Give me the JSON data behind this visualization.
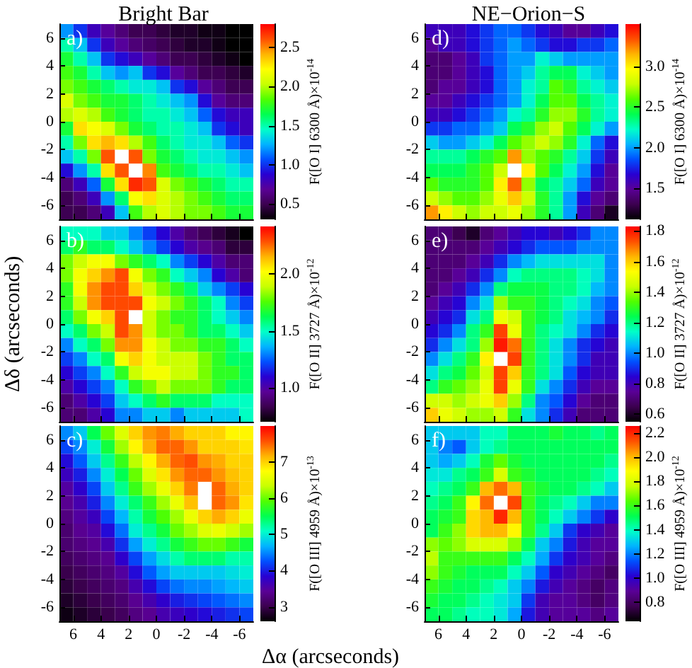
{
  "chart_data": [
    {
      "type": "heatmap",
      "title": "Bright Bar",
      "clabel": "F([O I] 6300 Å)×10$^{-14}$",
      "annotations": [
        "a)"
      ],
      "xlim": [
        7,
        -7
      ],
      "ylim": [
        -7,
        7
      ],
      "xticks": [
        6,
        4,
        2,
        0,
        -2,
        -4,
        -6
      ],
      "yticks": [
        -6,
        -4,
        -2,
        0,
        2,
        4,
        6
      ],
      "tick_labels": "y",
      "clim": [
        0.3,
        2.8
      ],
      "cticks": [
        0.5,
        {
          "value": 1,
          "label": "1.0"
        },
        1.5,
        {
          "value": 2,
          "label": "2.0"
        },
        2.5
      ],
      "cells": [
        [
          1.2,
          1.0,
          0.8,
          0.7,
          0.6,
          0.5,
          0.5,
          0.45,
          0.4,
          0.4,
          0.35,
          0.35,
          0.3,
          0.3
        ],
        [
          1.5,
          1.3,
          1.0,
          0.8,
          0.7,
          0.6,
          0.55,
          0.5,
          0.45,
          0.4,
          0.4,
          0.35,
          0.3,
          0.3
        ],
        [
          1.7,
          1.5,
          1.3,
          1.0,
          0.9,
          0.8,
          0.7,
          0.6,
          0.5,
          0.5,
          0.45,
          0.4,
          0.35,
          0.3
        ],
        [
          1.8,
          1.7,
          1.5,
          1.3,
          1.2,
          1.3,
          1.0,
          0.9,
          0.7,
          0.6,
          0.5,
          0.5,
          0.45,
          0.4
        ],
        [
          1.9,
          1.8,
          1.7,
          1.6,
          1.5,
          1.4,
          1.4,
          1.3,
          1.0,
          0.9,
          0.7,
          0.6,
          0.5,
          0.5
        ],
        [
          2.1,
          1.9,
          1.8,
          1.7,
          1.7,
          1.6,
          1.5,
          1.4,
          1.3,
          1.2,
          0.9,
          0.7,
          0.6,
          0.6
        ],
        [
          2.0,
          2.1,
          2.0,
          1.8,
          1.7,
          1.6,
          1.5,
          1.5,
          1.4,
          1.3,
          1.1,
          0.9,
          0.8,
          0.8
        ],
        [
          1.7,
          2.3,
          2.2,
          2.1,
          1.9,
          1.7,
          1.6,
          1.5,
          1.5,
          1.4,
          1.3,
          1.0,
          0.9,
          0.8
        ],
        [
          1.5,
          1.9,
          2.3,
          2.4,
          2.3,
          2.0,
          1.8,
          1.6,
          1.5,
          1.4,
          1.4,
          1.3,
          1.1,
          1.0
        ],
        [
          1.3,
          1.5,
          1.9,
          2.6,
          null,
          2.6,
          1.9,
          1.7,
          1.6,
          1.5,
          1.4,
          1.4,
          1.3,
          1.2
        ],
        [
          0.9,
          1.2,
          1.5,
          2.3,
          2.6,
          null,
          2.5,
          1.8,
          1.7,
          1.6,
          1.5,
          1.5,
          1.4,
          1.3
        ],
        [
          0.6,
          0.8,
          1.1,
          1.7,
          2.3,
          2.7,
          2.6,
          2.1,
          1.9,
          1.8,
          1.7,
          1.6,
          1.5,
          1.5
        ],
        [
          0.5,
          0.6,
          0.8,
          1.2,
          1.6,
          2.2,
          2.3,
          2.1,
          2.0,
          1.9,
          1.8,
          1.7,
          1.6,
          1.6
        ],
        [
          0.5,
          0.5,
          0.6,
          0.8,
          1.3,
          1.8,
          2.0,
          2.1,
          2.0,
          1.9,
          1.9,
          1.8,
          1.7,
          1.7
        ]
      ]
    },
    {
      "type": "heatmap",
      "title": "NE−Orion−S",
      "clabel": "F([O I] 6300 Å)×10$^{-14}$",
      "annotations": [
        "d)"
      ],
      "xlim": [
        7,
        -7
      ],
      "ylim": [
        -7,
        7
      ],
      "xticks": [
        6,
        4,
        2,
        0,
        -2,
        -4,
        -6
      ],
      "yticks": [
        -6,
        -4,
        -2,
        0,
        2,
        4,
        6
      ],
      "tick_labels": "y",
      "clim": [
        1.12,
        3.52
      ],
      "cticks": [
        1.5,
        {
          "value": 2,
          "label": "2.0"
        },
        2.5,
        {
          "value": 3,
          "label": "3.0"
        }
      ],
      "cells": [
        [
          1.6,
          1.6,
          1.6,
          1.7,
          1.8,
          1.9,
          1.9,
          1.8,
          1.7,
          1.6,
          1.5,
          1.5,
          1.6,
          1.7
        ],
        [
          1.5,
          1.6,
          1.6,
          1.7,
          1.8,
          1.9,
          2.0,
          1.9,
          1.8,
          1.7,
          1.7,
          1.8,
          1.8,
          1.9
        ],
        [
          1.4,
          1.4,
          1.5,
          1.6,
          1.8,
          1.9,
          2.0,
          2.0,
          2.2,
          2.1,
          2.0,
          2.0,
          2.0,
          2.0
        ],
        [
          1.4,
          1.4,
          1.5,
          1.6,
          1.7,
          1.9,
          2.0,
          2.1,
          2.3,
          2.4,
          2.4,
          2.2,
          2.1,
          2.0
        ],
        [
          1.4,
          1.5,
          1.5,
          1.6,
          1.7,
          1.9,
          2.0,
          2.2,
          2.3,
          2.6,
          2.5,
          2.3,
          2.2,
          2.1
        ],
        [
          1.5,
          1.5,
          1.6,
          1.7,
          1.8,
          1.9,
          2.0,
          2.2,
          2.4,
          2.6,
          2.6,
          2.4,
          2.3,
          2.2
        ],
        [
          1.6,
          1.6,
          1.7,
          1.8,
          1.9,
          2.0,
          2.2,
          2.3,
          2.5,
          2.7,
          2.7,
          2.5,
          2.3,
          2.2
        ],
        [
          1.8,
          1.8,
          1.9,
          1.9,
          2.0,
          2.1,
          2.4,
          2.5,
          2.7,
          2.8,
          2.6,
          2.4,
          2.2,
          2.0
        ],
        [
          2.1,
          2.0,
          2.0,
          2.1,
          2.2,
          2.4,
          2.6,
          2.7,
          2.8,
          2.7,
          2.5,
          2.2,
          1.9,
          1.7
        ],
        [
          2.3,
          2.3,
          2.3,
          2.4,
          2.5,
          2.6,
          3.2,
          2.7,
          2.6,
          2.5,
          2.3,
          2.1,
          1.8,
          1.6
        ],
        [
          2.4,
          2.4,
          2.4,
          2.5,
          2.6,
          2.8,
          null,
          3.0,
          2.6,
          2.4,
          2.2,
          2.0,
          1.7,
          1.5
        ],
        [
          2.6,
          2.5,
          2.5,
          2.5,
          2.6,
          3.0,
          3.3,
          2.7,
          2.4,
          2.3,
          2.1,
          1.9,
          1.6,
          1.5
        ],
        [
          2.8,
          2.7,
          2.6,
          2.6,
          2.7,
          2.9,
          3.1,
          2.8,
          2.5,
          2.3,
          2.0,
          1.7,
          1.5,
          1.4
        ],
        [
          3.2,
          3.0,
          2.8,
          2.7,
          2.8,
          2.8,
          2.9,
          2.7,
          2.5,
          2.3,
          2.0,
          1.6,
          1.4,
          1.2
        ]
      ]
    },
    {
      "type": "heatmap",
      "ylabel": "Δδ (arcseconds)",
      "clabel": "F([O II] 3727 Å)×10$^{-12}$",
      "annotations": [
        "b)"
      ],
      "xlim": [
        7,
        -7
      ],
      "ylim": [
        -7,
        7
      ],
      "xticks": [
        6,
        4,
        2,
        0,
        -2,
        -4,
        -6
      ],
      "yticks": [
        -6,
        -4,
        -2,
        0,
        2,
        4,
        6
      ],
      "tick_labels": "y",
      "clim": [
        0.7,
        2.42
      ],
      "cticks": [
        {
          "value": 1,
          "label": "1.0"
        },
        1.5,
        {
          "value": 2,
          "label": "2.0"
        }
      ],
      "cells": [
        [
          1.5,
          1.5,
          1.5,
          1.4,
          1.4,
          1.3,
          1.2,
          1.1,
          1.0,
          0.9,
          0.85,
          0.8,
          0.75,
          0.7
        ],
        [
          1.6,
          1.7,
          1.6,
          1.6,
          1.5,
          1.4,
          1.3,
          1.2,
          1.1,
          1.0,
          0.95,
          0.9,
          0.8,
          0.8
        ],
        [
          1.8,
          1.9,
          2.0,
          2.0,
          1.8,
          1.7,
          1.6,
          1.5,
          1.3,
          1.2,
          1.1,
          1.0,
          0.9,
          0.9
        ],
        [
          1.8,
          2.0,
          2.1,
          2.2,
          2.3,
          2.0,
          1.8,
          1.7,
          1.5,
          1.4,
          1.3,
          1.1,
          1.0,
          0.9
        ],
        [
          1.7,
          2.0,
          2.2,
          2.3,
          2.3,
          2.1,
          1.9,
          1.8,
          1.7,
          1.6,
          1.4,
          1.3,
          1.2,
          1.1
        ],
        [
          1.7,
          1.9,
          2.2,
          2.3,
          2.3,
          2.3,
          2.0,
          1.9,
          1.8,
          1.7,
          1.6,
          1.5,
          1.3,
          1.2
        ],
        [
          1.6,
          1.8,
          2.0,
          2.1,
          2.3,
          null,
          1.9,
          1.8,
          1.7,
          1.7,
          1.6,
          1.5,
          1.4,
          1.3
        ],
        [
          1.5,
          1.6,
          1.8,
          1.9,
          2.3,
          2.2,
          1.9,
          1.8,
          1.8,
          1.7,
          1.6,
          1.6,
          1.5,
          1.4
        ],
        [
          1.3,
          1.5,
          1.6,
          1.8,
          2.2,
          2.2,
          2.0,
          1.9,
          1.8,
          1.8,
          1.7,
          1.7,
          1.6,
          1.5
        ],
        [
          1.2,
          1.3,
          1.5,
          1.6,
          2.0,
          2.1,
          2.0,
          1.9,
          1.9,
          1.9,
          1.8,
          1.7,
          1.6,
          1.6
        ],
        [
          1.1,
          1.2,
          1.3,
          1.5,
          1.7,
          1.9,
          2.0,
          2.0,
          1.9,
          1.9,
          1.8,
          1.7,
          1.7,
          1.6
        ],
        [
          1.0,
          1.1,
          1.2,
          1.3,
          1.5,
          1.7,
          1.8,
          1.9,
          1.8,
          1.8,
          1.8,
          1.7,
          1.6,
          1.6
        ],
        [
          0.9,
          1.0,
          1.1,
          1.2,
          1.4,
          1.5,
          1.6,
          1.7,
          1.6,
          1.6,
          1.6,
          1.5,
          1.5,
          1.5
        ],
        [
          0.9,
          0.9,
          1.0,
          1.1,
          1.3,
          1.3,
          1.4,
          1.4,
          1.3,
          1.4,
          1.4,
          1.4,
          1.4,
          1.5
        ]
      ]
    },
    {
      "type": "heatmap",
      "clabel": "F([O II] 3727 Å)×10$^{-12}$",
      "annotations": [
        "e)"
      ],
      "xlim": [
        7,
        -7
      ],
      "ylim": [
        -7,
        7
      ],
      "xticks": [
        6,
        4,
        2,
        0,
        -2,
        -4,
        -6
      ],
      "yticks": [
        -6,
        -4,
        -2,
        0,
        2,
        4,
        6
      ],
      "tick_labels": "y",
      "clim": [
        0.55,
        1.83
      ],
      "cticks": [
        0.6,
        0.8,
        {
          "value": 1,
          "label": "1.0"
        },
        1.2,
        1.4,
        1.6,
        1.8
      ],
      "cells": [
        [
          0.7,
          0.7,
          0.65,
          0.6,
          0.7,
          0.75,
          0.8,
          0.85,
          0.85,
          0.8,
          0.85,
          0.9,
          1.0,
          1.0
        ],
        [
          0.7,
          0.7,
          0.7,
          0.7,
          0.75,
          0.8,
          0.85,
          0.9,
          0.95,
          0.95,
          0.95,
          1.0,
          1.0,
          1.0
        ],
        [
          0.7,
          0.7,
          0.7,
          0.75,
          0.8,
          0.9,
          1.0,
          1.05,
          1.1,
          1.1,
          1.1,
          1.1,
          1.1,
          1.0
        ],
        [
          0.7,
          0.7,
          0.75,
          0.8,
          0.9,
          1.0,
          1.15,
          1.2,
          1.2,
          1.2,
          1.2,
          1.15,
          1.1,
          1.0
        ],
        [
          0.7,
          0.75,
          0.8,
          0.9,
          1.0,
          1.2,
          1.25,
          1.25,
          1.25,
          1.2,
          1.2,
          1.15,
          1.05,
          1.0
        ],
        [
          0.75,
          0.8,
          0.85,
          1.0,
          1.1,
          1.4,
          1.3,
          1.3,
          1.25,
          1.2,
          1.15,
          1.1,
          1.0,
          0.95
        ],
        [
          0.8,
          0.85,
          0.9,
          1.1,
          1.2,
          1.5,
          1.45,
          1.3,
          1.25,
          1.2,
          1.1,
          1.05,
          1.0,
          0.9
        ],
        [
          0.85,
          0.9,
          1.0,
          1.2,
          1.3,
          1.75,
          1.5,
          1.3,
          1.2,
          1.15,
          1.1,
          1.0,
          0.9,
          0.85
        ],
        [
          0.9,
          1.0,
          1.1,
          1.2,
          1.4,
          1.8,
          1.7,
          1.3,
          1.2,
          1.1,
          1.0,
          0.9,
          0.85,
          0.8
        ],
        [
          1.0,
          1.1,
          1.2,
          1.3,
          1.55,
          null,
          1.75,
          1.3,
          1.2,
          1.1,
          1.0,
          0.9,
          0.8,
          0.8
        ],
        [
          1.1,
          1.2,
          1.25,
          1.35,
          1.45,
          1.75,
          1.6,
          1.3,
          1.2,
          1.1,
          0.95,
          0.85,
          0.8,
          0.8
        ],
        [
          1.2,
          1.3,
          1.35,
          1.4,
          1.5,
          1.75,
          1.5,
          1.3,
          1.1,
          1.0,
          0.9,
          0.8,
          0.75,
          0.75
        ],
        [
          1.45,
          1.45,
          1.4,
          1.45,
          1.5,
          1.6,
          1.4,
          1.2,
          1.0,
          0.95,
          0.85,
          0.75,
          0.7,
          0.7
        ],
        [
          1.6,
          1.5,
          1.45,
          1.4,
          1.4,
          1.45,
          1.3,
          1.1,
          1.0,
          0.9,
          0.8,
          0.7,
          0.7,
          0.7
        ]
      ]
    },
    {
      "type": "heatmap",
      "xlabel": "Δα (arcseconds)",
      "clabel": "F([O III] 4959 Å)×10$^{-13}$",
      "annotations": [
        "c)"
      ],
      "xlim": [
        7,
        -7
      ],
      "ylim": [
        -7,
        7
      ],
      "xticks": [
        6,
        4,
        2,
        0,
        -2,
        -4,
        -6
      ],
      "yticks": [
        -6,
        -4,
        -2,
        0,
        2,
        4,
        6
      ],
      "clim": [
        2.6,
        8
      ],
      "cticks": [
        3,
        4,
        5,
        6,
        7
      ],
      "cells": [
        [
          4.5,
          4.8,
          5.5,
          6.0,
          6.5,
          7.0,
          7.3,
          7.4,
          7.2,
          7.0,
          7.0,
          7.0,
          6.8,
          6.8
        ],
        [
          4.2,
          4.5,
          5.0,
          5.6,
          6.2,
          6.8,
          7.2,
          7.5,
          7.5,
          7.3,
          7.0,
          7.0,
          7.0,
          6.9
        ],
        [
          3.9,
          4.3,
          4.8,
          5.3,
          5.8,
          6.3,
          6.8,
          7.2,
          7.5,
          7.6,
          7.3,
          7.2,
          7.0,
          7.0
        ],
        [
          3.7,
          4.0,
          4.5,
          5.0,
          5.5,
          6.0,
          6.5,
          6.9,
          7.3,
          7.5,
          7.5,
          7.3,
          7.1,
          7.0
        ],
        [
          3.5,
          3.8,
          4.2,
          4.8,
          5.3,
          5.8,
          6.2,
          6.6,
          7.0,
          7.4,
          null,
          7.5,
          7.2,
          7.0
        ],
        [
          3.4,
          3.6,
          4.0,
          4.5,
          5.0,
          5.4,
          5.8,
          6.2,
          6.6,
          7.1,
          null,
          7.5,
          7.3,
          6.9
        ],
        [
          3.3,
          3.5,
          3.7,
          4.2,
          4.7,
          5.2,
          5.6,
          5.9,
          6.2,
          6.6,
          7.0,
          7.2,
          7.0,
          6.6
        ],
        [
          3.2,
          3.4,
          3.5,
          3.9,
          4.4,
          5.0,
          5.3,
          5.6,
          6.0,
          6.2,
          6.5,
          6.6,
          6.4,
          6.2
        ],
        [
          3.2,
          3.3,
          3.4,
          3.6,
          4.1,
          4.6,
          5.0,
          5.3,
          5.6,
          5.8,
          6.0,
          6.0,
          5.8,
          5.6
        ],
        [
          3.1,
          3.2,
          3.3,
          3.4,
          3.8,
          4.2,
          4.6,
          4.9,
          5.2,
          5.4,
          5.4,
          5.4,
          5.2,
          5.2
        ],
        [
          3.0,
          3.1,
          3.2,
          3.3,
          3.5,
          3.9,
          4.3,
          4.6,
          4.8,
          4.8,
          4.8,
          4.8,
          4.9,
          5.0
        ],
        [
          2.9,
          3.0,
          3.1,
          3.2,
          3.3,
          3.6,
          3.9,
          4.2,
          4.4,
          4.5,
          4.5,
          4.6,
          4.7,
          4.8
        ],
        [
          2.8,
          2.9,
          3.0,
          3.1,
          3.2,
          3.4,
          3.6,
          3.8,
          4.0,
          4.1,
          4.2,
          4.3,
          4.4,
          4.5
        ],
        [
          2.7,
          2.8,
          2.9,
          3.0,
          3.1,
          3.3,
          3.4,
          3.6,
          3.7,
          3.8,
          3.9,
          4.0,
          4.1,
          4.2
        ]
      ]
    },
    {
      "type": "heatmap",
      "clabel": "F([O III] 4959 Å)×10$^{-12}$",
      "annotations": [
        "f)"
      ],
      "xlim": [
        7,
        -7
      ],
      "ylim": [
        -7,
        7
      ],
      "xticks": [
        6,
        4,
        2,
        0,
        -2,
        -4,
        -6
      ],
      "yticks": [
        -6,
        -4,
        -2,
        0,
        2,
        4,
        6
      ],
      "clim": [
        0.64,
        2.26
      ],
      "cticks": [
        0.8,
        {
          "value": 1,
          "label": "1.0"
        },
        1.2,
        1.4,
        1.6,
        1.8,
        {
          "value": 2,
          "label": "2.0"
        },
        2.2
      ],
      "cells": [
        [
          1.3,
          1.3,
          1.3,
          1.3,
          1.4,
          1.4,
          1.5,
          1.5,
          1.5,
          1.55,
          1.5,
          1.5,
          1.45,
          1.5
        ],
        [
          1.3,
          1.2,
          1.15,
          1.3,
          1.4,
          1.45,
          1.5,
          1.5,
          1.5,
          1.5,
          1.5,
          1.5,
          1.5,
          1.5
        ],
        [
          1.3,
          1.25,
          1.3,
          1.4,
          1.55,
          1.65,
          1.55,
          1.5,
          1.5,
          1.5,
          1.5,
          1.5,
          1.5,
          1.45
        ],
        [
          1.35,
          1.35,
          1.45,
          1.5,
          1.6,
          1.8,
          1.6,
          1.55,
          1.5,
          1.5,
          1.5,
          1.5,
          1.45,
          1.4
        ],
        [
          1.4,
          1.45,
          1.5,
          1.6,
          2.0,
          2.1,
          2.0,
          1.6,
          1.55,
          1.5,
          1.5,
          1.45,
          1.4,
          1.3
        ],
        [
          1.45,
          1.5,
          1.6,
          1.9,
          2.1,
          null,
          2.15,
          1.6,
          1.5,
          1.45,
          1.4,
          1.3,
          1.2,
          1.2
        ],
        [
          1.5,
          1.55,
          1.6,
          1.95,
          2.0,
          2.2,
          2.0,
          1.6,
          1.5,
          1.4,
          1.3,
          1.2,
          1.1,
          1.0
        ],
        [
          1.5,
          1.6,
          1.7,
          1.95,
          2.0,
          2.0,
          1.9,
          1.6,
          1.45,
          1.3,
          1.1,
          1.0,
          0.95,
          0.9
        ],
        [
          1.7,
          1.65,
          1.7,
          1.8,
          1.8,
          1.8,
          1.7,
          1.5,
          1.3,
          1.2,
          1.05,
          0.95,
          0.9,
          0.9
        ],
        [
          1.75,
          1.6,
          1.6,
          1.6,
          1.6,
          1.6,
          1.5,
          1.4,
          1.25,
          1.1,
          1.0,
          0.95,
          0.9,
          0.85
        ],
        [
          1.7,
          1.6,
          1.55,
          1.5,
          1.5,
          1.5,
          1.4,
          1.3,
          1.15,
          1.0,
          0.95,
          0.9,
          0.85,
          0.8
        ],
        [
          1.6,
          1.55,
          1.5,
          1.5,
          1.45,
          1.4,
          1.3,
          1.2,
          1.05,
          0.95,
          0.9,
          0.85,
          0.8,
          0.85
        ],
        [
          1.55,
          1.5,
          1.5,
          1.45,
          1.4,
          1.35,
          1.3,
          1.1,
          0.95,
          0.9,
          0.9,
          0.85,
          0.8,
          0.85
        ],
        [
          1.5,
          1.5,
          1.45,
          1.4,
          1.4,
          1.35,
          1.25,
          1.05,
          0.95,
          0.9,
          0.9,
          0.9,
          0.85,
          0.9
        ]
      ]
    }
  ]
}
